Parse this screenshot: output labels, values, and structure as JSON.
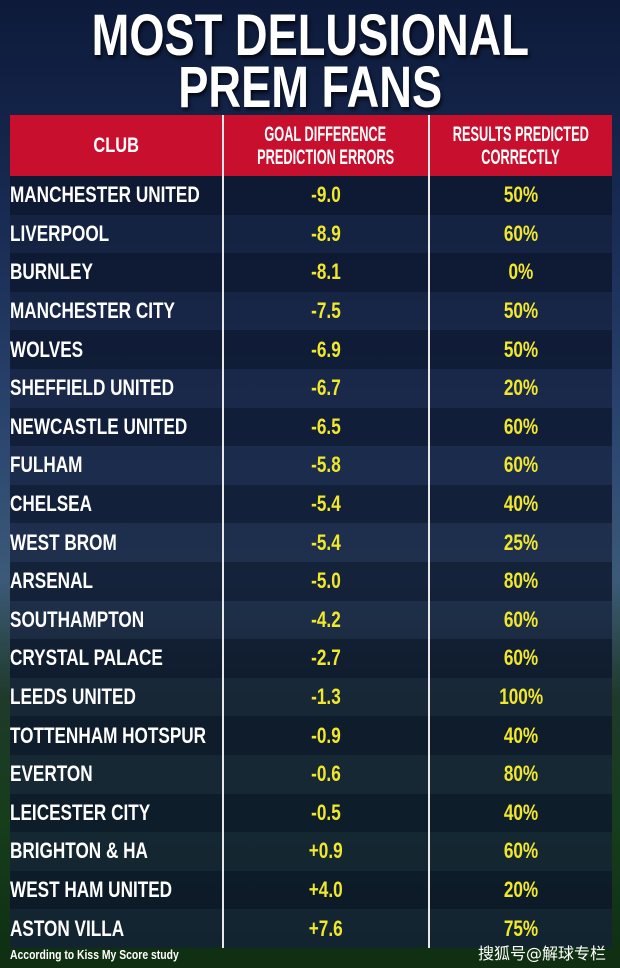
{
  "title_line1": "MOST DELUSIONAL",
  "title_line2": "PREM FANS",
  "chart_data": {
    "type": "table",
    "columns": [
      "CLUB",
      "GOAL DIFFERENCE PREDICTION ERRORS",
      "RESULTS PREDICTED CORRECTLY"
    ],
    "header_lines": {
      "col2a": "GOAL DIFFERENCE",
      "col2b": "PREDICTION ERRORS",
      "col3a": "RESULTS PREDICTED",
      "col3b": "CORRECTLY"
    },
    "rows": [
      [
        "MANCHESTER UNITED",
        "-9.0",
        "50%"
      ],
      [
        "LIVERPOOL",
        "-8.9",
        "60%"
      ],
      [
        "BURNLEY",
        "-8.1",
        "0%"
      ],
      [
        "MANCHESTER CITY",
        "-7.5",
        "50%"
      ],
      [
        "WOLVES",
        "-6.9",
        "50%"
      ],
      [
        "SHEFFIELD UNITED",
        "-6.7",
        "20%"
      ],
      [
        "NEWCASTLE UNITED",
        "-6.5",
        "60%"
      ],
      [
        "FULHAM",
        "-5.8",
        "60%"
      ],
      [
        "CHELSEA",
        "-5.4",
        "40%"
      ],
      [
        "WEST BROM",
        "-5.4",
        "25%"
      ],
      [
        "ARSENAL",
        "-5.0",
        "80%"
      ],
      [
        "SOUTHAMPTON",
        "-4.2",
        "60%"
      ],
      [
        "CRYSTAL PALACE",
        "-2.7",
        "60%"
      ],
      [
        "LEEDS UNITED",
        "-1.3",
        "100%"
      ],
      [
        "TOTTENHAM HOTSPUR",
        "-0.9",
        "40%"
      ],
      [
        "EVERTON",
        "-0.6",
        "80%"
      ],
      [
        "LEICESTER CITY",
        "-0.5",
        "40%"
      ],
      [
        "BRIGHTON & HA",
        "+0.9",
        "60%"
      ],
      [
        "WEST HAM UNITED",
        "+4.0",
        "20%"
      ],
      [
        "ASTON VILLA",
        "+7.6",
        "75%"
      ]
    ]
  },
  "source_note": "According to Kiss My Score study",
  "watermark": "搜狐号@解球专栏",
  "colors": {
    "header": "#c8102e",
    "values": "#f2e82b",
    "text": "#ffffff"
  }
}
